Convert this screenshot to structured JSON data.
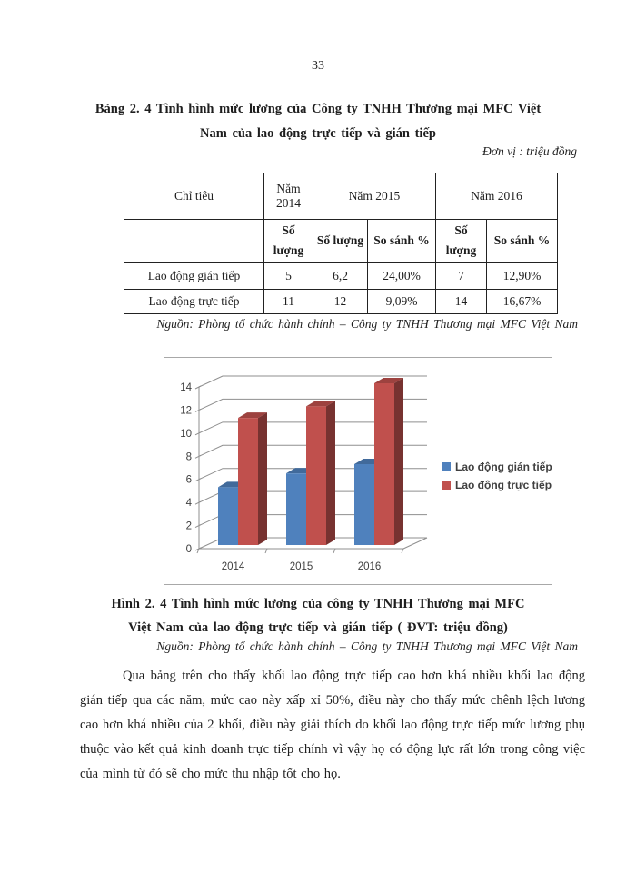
{
  "page": {
    "number": "33"
  },
  "table_section": {
    "caption_line1": "Bảng 2. 4 Tình hình mức lương của Công ty TNHH  Thương  mại MFC Việt",
    "caption_line2": "Nam  của lao động trực tiếp và gián tiếp",
    "unit_note": "Đơn vị : triệu đồng",
    "source": "Nguồn:  Phòng tổ chức hành chính – Công ty TNHH  Thương mại MFC  Việt Nam",
    "table": {
      "header_row1": [
        "Chỉ tiêu",
        "Năm 2014",
        "Năm 2015",
        "Năm 2016"
      ],
      "header_row2": [
        "Số lượng",
        "Số lượng",
        "So sánh %",
        "Số lượng",
        "So sánh %"
      ],
      "rows": [
        [
          "Lao động gián tiếp",
          "5",
          "6,2",
          "24,00%",
          "7",
          "12,90%"
        ],
        [
          "Lao động trực tiếp",
          "11",
          "12",
          "9,09%",
          "14",
          "16,67%"
        ]
      ]
    }
  },
  "chart_data": {
    "type": "bar",
    "style": "3d-clustered-column",
    "categories": [
      "2014",
      "2015",
      "2016"
    ],
    "series": [
      {
        "name": "Lao động gián tiếp",
        "color": "#4F81BD",
        "values": [
          5,
          6.2,
          7
        ]
      },
      {
        "name": "Lao động trực tiếp",
        "color": "#C0504D",
        "values": [
          11,
          12,
          14
        ]
      }
    ],
    "title": "",
    "xlabel": "",
    "ylabel": "",
    "ylim": [
      0,
      14
    ],
    "yticks": [
      0,
      2,
      4,
      6,
      8,
      10,
      12,
      14
    ],
    "grid": true,
    "legend_position": "right",
    "gridline_color": "#8f8f8f",
    "label_color": "#3f3f3f"
  },
  "figure_section": {
    "caption_line1": "Hình 2. 4 Tình hình mức lương của công ty TNHH  Thương  mại MFC",
    "caption_line2": "Việt Nam  của lao động trực tiếp và gián tiếp ( ĐVT:  triệu đồng)",
    "source": "Nguồn:  Phòng tổ chức hành chính – Công ty TNHH  Thương mại MFC  Việt Nam"
  },
  "body_paragraph": {
    "text": "Qua bảng trên cho thấy khối lao động trực tiếp cao hơn khá nhiều khối lao động gián tiếp qua các năm, mức cao này xấp xỉ 50%, điều này cho thấy mức chênh lệch lương cao hơn khá nhiều của 2 khối, điều này giải thích do khối lao động trực tiếp mức lương phụ thuộc vào kết quả kinh doanh trực tiếp chính vì vậy họ có động lực rất lớn trong công việc của mình từ đó sẽ cho mức thu nhập tốt cho họ."
  }
}
